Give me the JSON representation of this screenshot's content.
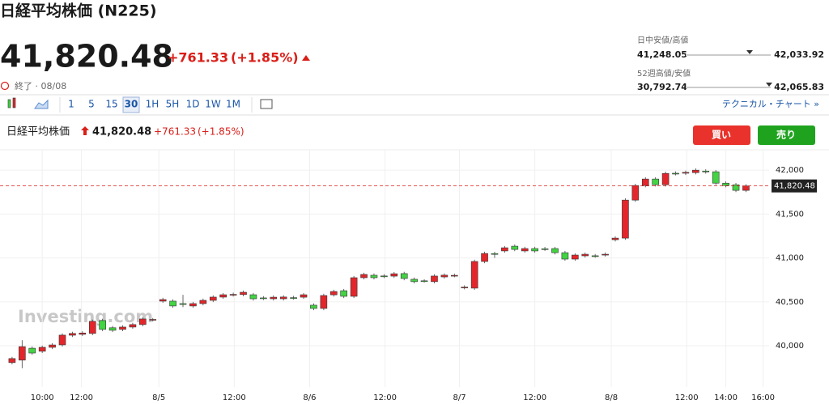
{
  "header": {
    "title": "日経平均株価 (N225)",
    "price": "41,820.48",
    "change": "+761.33",
    "change_pct": "(+1.85%)",
    "status": "終了 · 08/08"
  },
  "ranges": {
    "day_label": "日中安値/高値",
    "day_low": "41,248.05",
    "day_high": "42,033.92",
    "week52_label": "52週高値/安値",
    "week52_low": "30,792.74",
    "week52_high": "42,065.83"
  },
  "toolbar": {
    "intervals": [
      "1",
      "5",
      "15",
      "30",
      "1H",
      "5H",
      "1D",
      "1W",
      "1M"
    ],
    "selected": "30",
    "technical": "テクニカル・チャート »"
  },
  "chart_header": {
    "name": "日経平均株価",
    "price": "41,820.48",
    "change": "+761.33",
    "change_pct": "(+1.85%)"
  },
  "buttons": {
    "buy": "買い",
    "sell": "売り"
  },
  "watermark": "Investing.com",
  "chart_data": {
    "type": "candlestick",
    "up_color": "#e3262b",
    "down_color": "#43d343",
    "open": [
      39808,
      39836,
      39972,
      39937,
      39982,
      40010,
      40120,
      40130,
      40140,
      40287,
      40205,
      40186,
      40213,
      40241,
      40296,
      40508,
      40508,
      40480,
      40453,
      40480,
      40517,
      40554,
      40580,
      40583,
      40581,
      40545,
      40535,
      40535,
      40548,
      40553,
      40462,
      40425,
      40580,
      40627,
      40563,
      40775,
      40803,
      40795,
      40793,
      40822,
      40757,
      40740,
      40730,
      40784,
      40800,
      40662,
      40656,
      40960,
      41050,
      41080,
      41134,
      41080,
      41107,
      41105,
      41107,
      41060,
      40987,
      41024,
      41025,
      41036,
      41208,
      41226,
      41659,
      41825,
      41899,
      41834,
      41965,
      41965,
      41972,
      41990,
      41982,
      41852,
      41834,
      41770
    ],
    "high": [
      39874,
      40063,
      39992,
      40002,
      40029,
      40141,
      40160,
      40165,
      40298,
      40307,
      40225,
      40233,
      40261,
      40325,
      40316,
      40546,
      40528,
      40580,
      40500,
      40537,
      40574,
      40601,
      40605,
      40629,
      40601,
      40565,
      40573,
      40575,
      40568,
      40601,
      40482,
      40592,
      40638,
      40647,
      40795,
      40832,
      40823,
      40815,
      40840,
      40842,
      40777,
      40758,
      40814,
      40824,
      40822,
      40688,
      40980,
      41071,
      41070,
      41136,
      41154,
      41127,
      41127,
      41125,
      41127,
      41080,
      41053,
      41062,
      41045,
      41062,
      41246,
      41679,
      41845,
      41919,
      41919,
      41983,
      41985,
      41995,
      42020,
      42010,
      42002,
      41872,
      41854,
      41840
    ],
    "low": [
      39788,
      39744,
      39897,
      39917,
      39962,
      39990,
      40100,
      40110,
      40120,
      40166,
      40156,
      40166,
      40193,
      40221,
      40276,
      40488,
      40433,
      40440,
      40433,
      40460,
      40497,
      40534,
      40560,
      40563,
      40515,
      40520,
      40515,
      40515,
      40525,
      40533,
      40405,
      40405,
      40560,
      40543,
      40543,
      40755,
      40755,
      40770,
      40773,
      40746,
      40710,
      40718,
      40710,
      40764,
      40780,
      40642,
      40636,
      40940,
      41000,
      41060,
      41077,
      41060,
      41060,
      41080,
      41040,
      40967,
      40967,
      41004,
      41003,
      41016,
      41188,
      41206,
      41639,
      41805,
      41814,
      41814,
      41940,
      41945,
      41952,
      41960,
      41832,
      41805,
      41750,
      41750
    ],
    "close": [
      39854,
      39990,
      39917,
      39982,
      40009,
      40121,
      40140,
      40145,
      40278,
      40186,
      40176,
      40213,
      40241,
      40305,
      40300,
      40526,
      40453,
      40470,
      40480,
      40517,
      40554,
      40581,
      40585,
      40609,
      40535,
      40540,
      40553,
      40555,
      40545,
      40581,
      40425,
      40572,
      40618,
      40563,
      40775,
      40812,
      40775,
      40790,
      40820,
      40766,
      40730,
      40738,
      40794,
      40804,
      40802,
      40668,
      40960,
      41051,
      41045,
      41116,
      41097,
      41107,
      41080,
      41100,
      41060,
      40987,
      41033,
      41042,
      41023,
      41042,
      41226,
      41659,
      41825,
      41899,
      41834,
      41963,
      41960,
      41975,
      42000,
      41980,
      41852,
      41825,
      41770,
      41820.48
    ],
    "xlim": [
      -1.2,
      75.3
    ],
    "xticks": [
      {
        "value": 3,
        "label": "10:00"
      },
      {
        "value": 6.9,
        "label": "12:00"
      },
      {
        "value": 14.6,
        "label": "8/5"
      },
      {
        "value": 22.1,
        "label": "12:00"
      },
      {
        "value": 29.6,
        "label": "8/6"
      },
      {
        "value": 37.1,
        "label": "12:00"
      },
      {
        "value": 44.5,
        "label": "8/7"
      },
      {
        "value": 52,
        "label": "12:00"
      },
      {
        "value": 59.6,
        "label": "8/8"
      },
      {
        "value": 67.1,
        "label": "12:00"
      },
      {
        "value": 71,
        "label": "14:00"
      },
      {
        "value": 74.7,
        "label": "16:00"
      }
    ],
    "ylim": [
      39530,
      42140
    ],
    "yticks": [
      {
        "value": 40000,
        "label": "40,000"
      },
      {
        "value": 40500,
        "label": "40,500"
      },
      {
        "value": 41000,
        "label": "41,000"
      },
      {
        "value": 41500,
        "label": "41,500"
      },
      {
        "value": 42000,
        "label": "42,000"
      }
    ],
    "grid": true,
    "last_price": {
      "value": 41820.48,
      "label": "41,820.48"
    }
  }
}
